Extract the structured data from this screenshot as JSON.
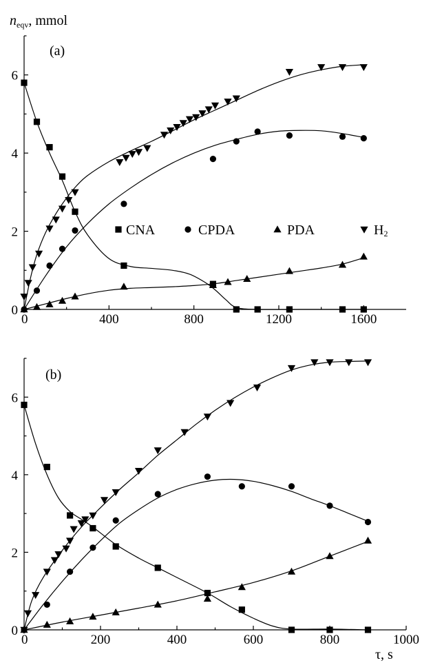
{
  "figure": {
    "ylabel_main": "n",
    "ylabel_sub": "eqv",
    "ylabel_unit": ", mmol",
    "xlabel": "τ, s",
    "colors": {
      "ink": "#000000",
      "background": "#ffffff"
    },
    "legend_labels": [
      "CNA",
      "CPDA",
      "PDA",
      "H"
    ],
    "legend_subscript": "2"
  },
  "chart_data": [
    {
      "type": "scatter",
      "panel_label": "(a)",
      "xlim": [
        0,
        1800
      ],
      "ylim": [
        0,
        7
      ],
      "x_ticks": [
        0,
        400,
        800,
        1200,
        1600
      ],
      "y_ticks": [
        0,
        2,
        4,
        6
      ],
      "grid": false,
      "legend": "middle-right",
      "series": [
        {
          "marker": "square",
          "points": [
            [
              0,
              5.8
            ],
            [
              60,
              4.8
            ],
            [
              120,
              4.15
            ],
            [
              180,
              3.4
            ],
            [
              240,
              2.5
            ],
            [
              470,
              1.12
            ],
            [
              890,
              0.65
            ],
            [
              1000,
              0
            ],
            [
              1100,
              0
            ],
            [
              1250,
              0
            ],
            [
              1500,
              0
            ],
            [
              1600,
              0
            ]
          ],
          "fit": [
            [
              0,
              5.8
            ],
            [
              60,
              4.8
            ],
            [
              120,
              4.0
            ],
            [
              180,
              3.3
            ],
            [
              240,
              2.5
            ],
            [
              300,
              1.9
            ],
            [
              400,
              1.3
            ],
            [
              500,
              1.1
            ],
            [
              600,
              1.05
            ],
            [
              700,
              1.0
            ],
            [
              780,
              0.9
            ],
            [
              850,
              0.7
            ],
            [
              900,
              0.5
            ],
            [
              950,
              0.25
            ],
            [
              1000,
              0.05
            ],
            [
              1100,
              0
            ],
            [
              1300,
              0
            ],
            [
              1600,
              0
            ]
          ]
        },
        {
          "marker": "circle",
          "points": [
            [
              0,
              0
            ],
            [
              60,
              0.48
            ],
            [
              120,
              1.12
            ],
            [
              180,
              1.55
            ],
            [
              240,
              2.02
            ],
            [
              470,
              2.7
            ],
            [
              890,
              3.85
            ],
            [
              1000,
              4.3
            ],
            [
              1100,
              4.55
            ],
            [
              1250,
              4.45
            ],
            [
              1500,
              4.42
            ],
            [
              1600,
              4.38
            ]
          ],
          "fit": [
            [
              0,
              0
            ],
            [
              100,
              0.85
            ],
            [
              200,
              1.6
            ],
            [
              300,
              2.2
            ],
            [
              400,
              2.7
            ],
            [
              500,
              3.1
            ],
            [
              600,
              3.45
            ],
            [
              700,
              3.75
            ],
            [
              800,
              4.0
            ],
            [
              900,
              4.2
            ],
            [
              1000,
              4.35
            ],
            [
              1100,
              4.48
            ],
            [
              1200,
              4.56
            ],
            [
              1300,
              4.58
            ],
            [
              1400,
              4.57
            ],
            [
              1500,
              4.5
            ],
            [
              1600,
              4.4
            ]
          ]
        },
        {
          "marker": "triangle-up",
          "points": [
            [
              0,
              0
            ],
            [
              60,
              0.06
            ],
            [
              120,
              0.13
            ],
            [
              180,
              0.22
            ],
            [
              240,
              0.33
            ],
            [
              470,
              0.58
            ],
            [
              890,
              0.62
            ],
            [
              960,
              0.7
            ],
            [
              1050,
              0.78
            ],
            [
              1250,
              0.98
            ],
            [
              1500,
              1.14
            ],
            [
              1600,
              1.35
            ]
          ],
          "fit": [
            [
              0,
              0
            ],
            [
              100,
              0.14
            ],
            [
              200,
              0.28
            ],
            [
              300,
              0.4
            ],
            [
              400,
              0.49
            ],
            [
              500,
              0.54
            ],
            [
              600,
              0.56
            ],
            [
              700,
              0.58
            ],
            [
              800,
              0.61
            ],
            [
              900,
              0.66
            ],
            [
              1000,
              0.74
            ],
            [
              1100,
              0.82
            ],
            [
              1200,
              0.9
            ],
            [
              1300,
              0.98
            ],
            [
              1400,
              1.06
            ],
            [
              1500,
              1.16
            ],
            [
              1600,
              1.32
            ]
          ]
        },
        {
          "marker": "triangle-down",
          "points": [
            [
              0,
              0.33
            ],
            [
              20,
              0.68
            ],
            [
              40,
              1.08
            ],
            [
              70,
              1.43
            ],
            [
              120,
              2.07
            ],
            [
              150,
              2.3
            ],
            [
              180,
              2.58
            ],
            [
              210,
              2.8
            ],
            [
              240,
              3.0
            ],
            [
              450,
              3.77
            ],
            [
              480,
              3.88
            ],
            [
              510,
              3.98
            ],
            [
              540,
              4.03
            ],
            [
              580,
              4.13
            ],
            [
              660,
              4.47
            ],
            [
              690,
              4.58
            ],
            [
              720,
              4.67
            ],
            [
              750,
              4.77
            ],
            [
              780,
              4.87
            ],
            [
              810,
              4.92
            ],
            [
              840,
              5.02
            ],
            [
              870,
              5.12
            ],
            [
              900,
              5.22
            ],
            [
              960,
              5.32
            ],
            [
              1000,
              5.4
            ],
            [
              1250,
              6.08
            ],
            [
              1400,
              6.2
            ],
            [
              1500,
              6.2
            ],
            [
              1600,
              6.2
            ]
          ],
          "fit": [
            [
              0,
              0
            ],
            [
              30,
              0.8
            ],
            [
              60,
              1.4
            ],
            [
              100,
              1.95
            ],
            [
              150,
              2.45
            ],
            [
              200,
              2.85
            ],
            [
              250,
              3.18
            ],
            [
              300,
              3.43
            ],
            [
              400,
              3.78
            ],
            [
              500,
              4.05
            ],
            [
              600,
              4.3
            ],
            [
              700,
              4.57
            ],
            [
              800,
              4.85
            ],
            [
              900,
              5.1
            ],
            [
              1000,
              5.35
            ],
            [
              1100,
              5.6
            ],
            [
              1200,
              5.82
            ],
            [
              1300,
              6.0
            ],
            [
              1400,
              6.13
            ],
            [
              1500,
              6.22
            ],
            [
              1600,
              6.26
            ]
          ]
        }
      ]
    },
    {
      "type": "scatter",
      "panel_label": "(b)",
      "xlim": [
        0,
        1000
      ],
      "ylim": [
        0,
        7
      ],
      "x_ticks": [
        0,
        200,
        400,
        600,
        800,
        1000
      ],
      "y_ticks": [
        0,
        2,
        4,
        6
      ],
      "grid": false,
      "series": [
        {
          "marker": "square",
          "points": [
            [
              0,
              5.8
            ],
            [
              60,
              4.2
            ],
            [
              120,
              2.95
            ],
            [
              180,
              2.62
            ],
            [
              240,
              2.15
            ],
            [
              350,
              1.6
            ],
            [
              480,
              0.95
            ],
            [
              570,
              0.52
            ],
            [
              700,
              0
            ],
            [
              800,
              0
            ],
            [
              900,
              0
            ]
          ],
          "fit": [
            [
              0,
              5.8
            ],
            [
              30,
              4.8
            ],
            [
              60,
              4.0
            ],
            [
              90,
              3.4
            ],
            [
              120,
              3.05
            ],
            [
              150,
              2.85
            ],
            [
              180,
              2.65
            ],
            [
              240,
              2.2
            ],
            [
              300,
              1.85
            ],
            [
              350,
              1.6
            ],
            [
              400,
              1.35
            ],
            [
              480,
              0.95
            ],
            [
              540,
              0.6
            ],
            [
              600,
              0.3
            ],
            [
              650,
              0.1
            ],
            [
              700,
              0.02
            ],
            [
              800,
              0.02
            ],
            [
              900,
              0
            ]
          ]
        },
        {
          "marker": "circle",
          "points": [
            [
              0,
              0
            ],
            [
              60,
              0.65
            ],
            [
              120,
              1.5
            ],
            [
              180,
              2.12
            ],
            [
              240,
              2.82
            ],
            [
              350,
              3.5
            ],
            [
              480,
              3.95
            ],
            [
              570,
              3.7
            ],
            [
              700,
              3.7
            ],
            [
              800,
              3.2
            ],
            [
              900,
              2.78
            ]
          ],
          "fit": [
            [
              0,
              0
            ],
            [
              50,
              0.65
            ],
            [
              100,
              1.25
            ],
            [
              150,
              1.8
            ],
            [
              200,
              2.3
            ],
            [
              250,
              2.75
            ],
            [
              300,
              3.1
            ],
            [
              350,
              3.4
            ],
            [
              400,
              3.62
            ],
            [
              450,
              3.77
            ],
            [
              500,
              3.86
            ],
            [
              550,
              3.88
            ],
            [
              600,
              3.83
            ],
            [
              650,
              3.72
            ],
            [
              700,
              3.57
            ],
            [
              750,
              3.38
            ],
            [
              800,
              3.2
            ],
            [
              850,
              3.0
            ],
            [
              900,
              2.8
            ]
          ]
        },
        {
          "marker": "triangle-up",
          "points": [
            [
              0,
              0
            ],
            [
              60,
              0.13
            ],
            [
              120,
              0.22
            ],
            [
              180,
              0.34
            ],
            [
              240,
              0.45
            ],
            [
              350,
              0.65
            ],
            [
              480,
              0.8
            ],
            [
              570,
              1.1
            ],
            [
              700,
              1.5
            ],
            [
              800,
              1.9
            ],
            [
              900,
              2.3
            ]
          ],
          "fit": [
            [
              0,
              0
            ],
            [
              100,
              0.2
            ],
            [
              200,
              0.38
            ],
            [
              300,
              0.56
            ],
            [
              400,
              0.75
            ],
            [
              500,
              0.98
            ],
            [
              600,
              1.22
            ],
            [
              700,
              1.52
            ],
            [
              800,
              1.9
            ],
            [
              900,
              2.28
            ]
          ]
        },
        {
          "marker": "triangle-down",
          "points": [
            [
              0,
              0
            ],
            [
              10,
              0.43
            ],
            [
              30,
              0.9
            ],
            [
              60,
              1.5
            ],
            [
              80,
              1.8
            ],
            [
              90,
              1.95
            ],
            [
              110,
              2.1
            ],
            [
              120,
              2.3
            ],
            [
              130,
              2.6
            ],
            [
              150,
              2.75
            ],
            [
              160,
              2.85
            ],
            [
              180,
              2.95
            ],
            [
              210,
              3.35
            ],
            [
              240,
              3.55
            ],
            [
              300,
              4.1
            ],
            [
              350,
              4.63
            ],
            [
              420,
              5.1
            ],
            [
              480,
              5.5
            ],
            [
              540,
              5.85
            ],
            [
              610,
              6.25
            ],
            [
              700,
              6.75
            ],
            [
              760,
              6.9
            ],
            [
              800,
              6.9
            ],
            [
              850,
              6.9
            ],
            [
              900,
              6.9
            ]
          ],
          "fit": [
            [
              0,
              0
            ],
            [
              20,
              0.75
            ],
            [
              50,
              1.35
            ],
            [
              100,
              2.05
            ],
            [
              150,
              2.65
            ],
            [
              200,
              3.15
            ],
            [
              250,
              3.62
            ],
            [
              300,
              4.05
            ],
            [
              350,
              4.5
            ],
            [
              400,
              4.9
            ],
            [
              450,
              5.3
            ],
            [
              500,
              5.66
            ],
            [
              550,
              5.98
            ],
            [
              600,
              6.26
            ],
            [
              650,
              6.5
            ],
            [
              700,
              6.7
            ],
            [
              750,
              6.83
            ],
            [
              800,
              6.9
            ],
            [
              850,
              6.92
            ],
            [
              900,
              6.93
            ]
          ]
        }
      ]
    }
  ]
}
